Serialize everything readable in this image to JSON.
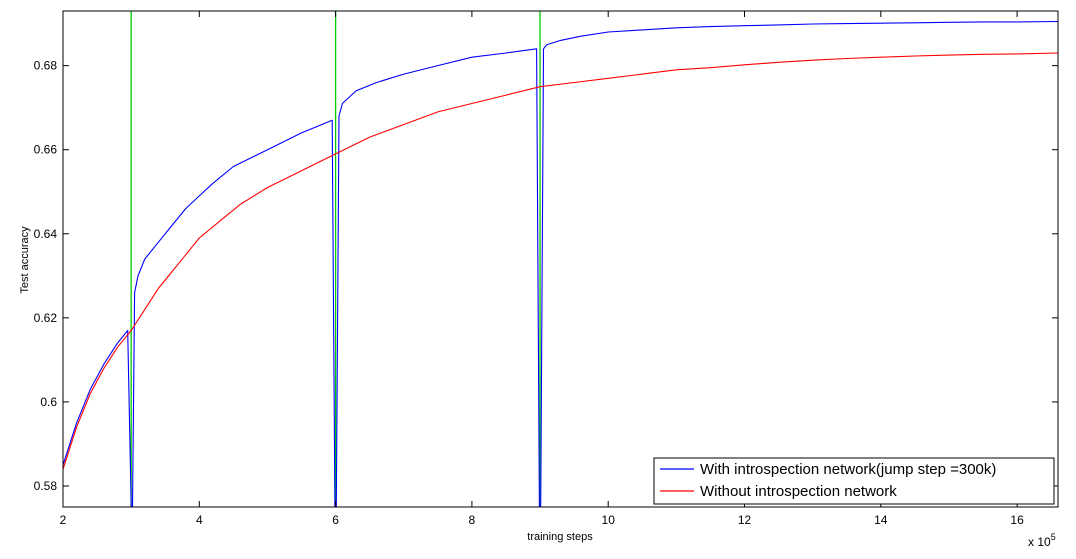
{
  "chart_data": {
    "type": "line",
    "xlabel": "training steps",
    "ylabel": "Test accuracy",
    "x_multiplier_label": "x 10",
    "x_multiplier_exponent": "5",
    "xlim": [
      2,
      16.6
    ],
    "ylim": [
      0.575,
      0.693
    ],
    "x_ticks": [
      2,
      4,
      6,
      8,
      10,
      12,
      14,
      16
    ],
    "x_tick_labels": [
      "2",
      "4",
      "6",
      "8",
      "10",
      "12",
      "14",
      "16"
    ],
    "y_ticks": [
      0.58,
      0.6,
      0.62,
      0.64,
      0.66,
      0.68
    ],
    "y_tick_labels": [
      "0.58",
      "0.6",
      "0.62",
      "0.64",
      "0.66",
      "0.68"
    ],
    "grid": false,
    "legend_position": "bottom-right",
    "vertical_markers": [
      3,
      6,
      9
    ],
    "colors": {
      "with": "#0000ff",
      "without": "#ff0000",
      "marker": "#00cc00"
    },
    "series": [
      {
        "name": "With introspection network(jump step =300k)",
        "color": "#0000ff",
        "x": [
          2.0,
          2.1,
          2.2,
          2.4,
          2.6,
          2.8,
          2.95,
          3.0,
          3.02,
          3.05,
          3.1,
          3.2,
          3.4,
          3.6,
          3.8,
          4.0,
          4.2,
          4.5,
          5.0,
          5.5,
          5.95,
          5.99,
          6.01,
          6.05,
          6.1,
          6.3,
          6.6,
          7.0,
          7.5,
          8.0,
          8.5,
          8.95,
          8.99,
          9.01,
          9.05,
          9.1,
          9.3,
          9.6,
          10.0,
          10.5,
          11.0,
          11.5,
          12.0,
          12.5,
          13.0,
          13.5,
          14.0,
          14.5,
          15.0,
          15.5,
          16.0,
          16.6
        ],
        "y": [
          0.585,
          0.59,
          0.595,
          0.603,
          0.609,
          0.614,
          0.617,
          0.575,
          0.575,
          0.626,
          0.63,
          0.634,
          0.638,
          0.642,
          0.646,
          0.649,
          0.652,
          0.656,
          0.66,
          0.664,
          0.667,
          0.575,
          0.575,
          0.668,
          0.671,
          0.674,
          0.676,
          0.678,
          0.68,
          0.682,
          0.683,
          0.684,
          0.575,
          0.575,
          0.684,
          0.685,
          0.686,
          0.687,
          0.688,
          0.6885,
          0.689,
          0.6893,
          0.6895,
          0.6897,
          0.6899,
          0.69,
          0.6901,
          0.6902,
          0.6903,
          0.6904,
          0.6904,
          0.6905
        ]
      },
      {
        "name": "Without introspection network",
        "color": "#ff0000",
        "x": [
          2.0,
          2.1,
          2.2,
          2.4,
          2.6,
          2.8,
          3.0,
          3.2,
          3.4,
          3.6,
          3.8,
          4.0,
          4.3,
          4.6,
          5.0,
          5.5,
          6.0,
          6.5,
          7.0,
          7.5,
          8.0,
          8.5,
          9.0,
          9.5,
          10.0,
          10.5,
          11.0,
          11.5,
          12.0,
          12.5,
          13.0,
          13.5,
          14.0,
          14.5,
          15.0,
          15.5,
          16.0,
          16.6
        ],
        "y": [
          0.584,
          0.589,
          0.594,
          0.602,
          0.608,
          0.613,
          0.617,
          0.622,
          0.627,
          0.631,
          0.635,
          0.639,
          0.643,
          0.647,
          0.651,
          0.655,
          0.659,
          0.663,
          0.666,
          0.669,
          0.671,
          0.673,
          0.675,
          0.676,
          0.677,
          0.678,
          0.679,
          0.6795,
          0.6802,
          0.6808,
          0.6813,
          0.6817,
          0.682,
          0.6823,
          0.6825,
          0.6827,
          0.6828,
          0.683
        ]
      }
    ]
  }
}
